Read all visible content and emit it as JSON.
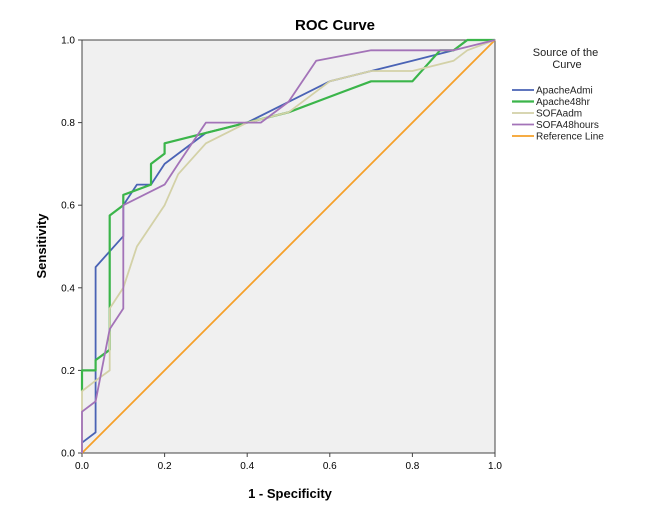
{
  "chart_data": {
    "type": "line",
    "title": "ROC Curve",
    "xlabel": "1 - Specificity",
    "ylabel": "Sensitivity",
    "xlim": [
      0,
      1
    ],
    "ylim": [
      0,
      1
    ],
    "x_ticks": [
      "0.0",
      "0.2",
      "0.4",
      "0.6",
      "0.8",
      "1.0"
    ],
    "y_ticks": [
      "0.0",
      "0.2",
      "0.4",
      "0.6",
      "0.8",
      "1.0"
    ],
    "grid": false,
    "plot_background": "#f0f0f0",
    "legend_title": "Source of the Curve",
    "legend_position": "right",
    "series": [
      {
        "name": "ApacheAdmi",
        "color": "#4a63b5",
        "x": [
          0,
          0,
          0.033,
          0.033,
          0.1,
          0.1,
          0.133,
          0.167,
          0.2,
          0.3,
          0.4,
          0.5,
          0.6,
          0.7,
          0.8,
          0.9,
          0.933,
          1.0
        ],
        "y": [
          0,
          0.025,
          0.05,
          0.45,
          0.525,
          0.6,
          0.65,
          0.65,
          0.7,
          0.775,
          0.8,
          0.85,
          0.9,
          0.925,
          0.95,
          0.975,
          1.0,
          1.0
        ]
      },
      {
        "name": "Apache48hr",
        "color": "#3bb54a",
        "x": [
          0,
          0,
          0.033,
          0.033,
          0.067,
          0.067,
          0.1,
          0.1,
          0.167,
          0.167,
          0.2,
          0.2,
          0.3,
          0.4,
          0.5,
          0.567,
          0.633,
          0.7,
          0.8,
          0.867,
          0.9,
          0.933,
          1.0
        ],
        "y": [
          0.15,
          0.2,
          0.2,
          0.225,
          0.25,
          0.575,
          0.6,
          0.625,
          0.65,
          0.7,
          0.725,
          0.75,
          0.775,
          0.8,
          0.825,
          0.85,
          0.875,
          0.9,
          0.9,
          0.975,
          0.975,
          1.0,
          1.0
        ]
      },
      {
        "name": "SOFAadm",
        "color": "#d3d1a7",
        "x": [
          0,
          0,
          0.033,
          0.067,
          0.067,
          0.1,
          0.133,
          0.2,
          0.233,
          0.3,
          0.4,
          0.5,
          0.6,
          0.7,
          0.8,
          0.9,
          0.933,
          1.0
        ],
        "y": [
          0,
          0.15,
          0.175,
          0.2,
          0.35,
          0.4,
          0.5,
          0.6,
          0.675,
          0.75,
          0.8,
          0.825,
          0.9,
          0.925,
          0.925,
          0.95,
          0.975,
          1.0
        ]
      },
      {
        "name": "SOFA48hours",
        "color": "#a373b8",
        "x": [
          0,
          0,
          0.033,
          0.067,
          0.1,
          0.1,
          0.2,
          0.233,
          0.3,
          0.4,
          0.433,
          0.5,
          0.567,
          0.7,
          0.8,
          0.9,
          1.0
        ],
        "y": [
          0,
          0.1,
          0.125,
          0.3,
          0.35,
          0.6,
          0.65,
          0.7,
          0.8,
          0.8,
          0.8,
          0.85,
          0.95,
          0.975,
          0.975,
          0.975,
          1.0
        ]
      },
      {
        "name": "Reference Line",
        "color": "#f5a02a",
        "x": [
          0,
          1
        ],
        "y": [
          0,
          1
        ]
      }
    ]
  }
}
